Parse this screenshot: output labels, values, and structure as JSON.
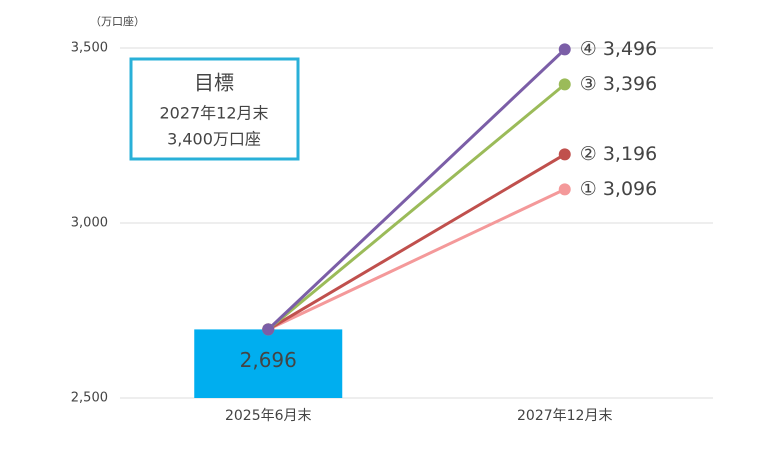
{
  "chart_data": {
    "type": "combo",
    "y_label": "（万口座）",
    "categories": [
      "2025年6月末",
      "2027年12月末"
    ],
    "ylim": [
      2500,
      3500
    ],
    "yticks": [
      {
        "value": 2500,
        "label": "2,500"
      },
      {
        "value": 3000,
        "label": "3,000"
      },
      {
        "value": 3500,
        "label": "3,500"
      }
    ],
    "grid": true,
    "series": [
      {
        "type": "bar",
        "color": "#00aeef",
        "values": [
          2696,
          null
        ],
        "value_labels": [
          "2,696",
          null
        ]
      },
      {
        "type": "line",
        "color": "#f4999a",
        "values": [
          2696,
          3096
        ],
        "value_labels": [
          null,
          "① 3,096"
        ]
      },
      {
        "type": "line",
        "color": "#c0504d",
        "values": [
          2696,
          3196
        ],
        "value_labels": [
          null,
          "② 3,196"
        ]
      },
      {
        "type": "line",
        "color": "#9bbb59",
        "values": [
          2696,
          3396
        ],
        "value_labels": [
          null,
          "③ 3,396"
        ]
      },
      {
        "type": "line",
        "color": "#7b5ea7",
        "values": [
          2696,
          3496
        ],
        "value_labels": [
          null,
          "④ 3,496"
        ]
      }
    ],
    "annotation": {
      "title": "目標",
      "lines": [
        "2027年12月末",
        "3,400万口座"
      ]
    }
  }
}
